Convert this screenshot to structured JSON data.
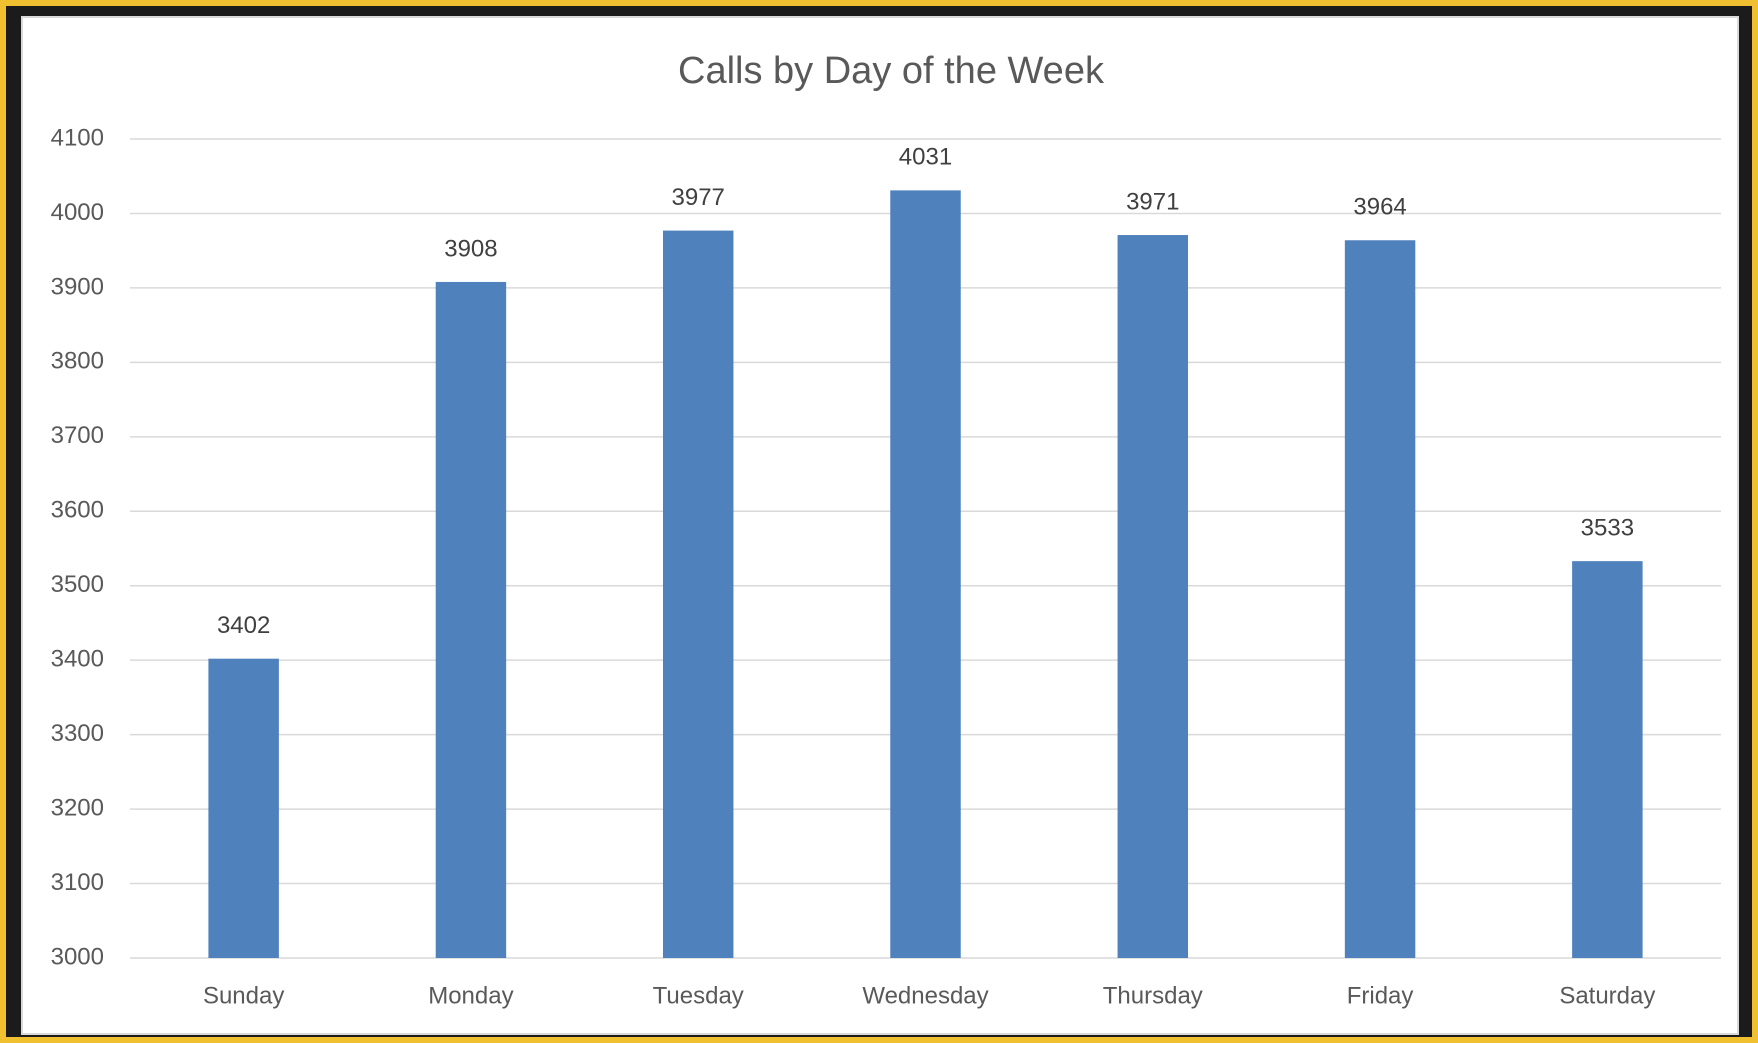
{
  "chart_data": {
    "type": "bar",
    "title": "Calls by Day of the Week",
    "categories": [
      "Sunday",
      "Monday",
      "Tuesday",
      "Wednesday",
      "Thursday",
      "Friday",
      "Saturday"
    ],
    "values": [
      3402,
      3908,
      3977,
      4031,
      3971,
      3964,
      3533
    ],
    "color": "#4f81bd",
    "ylim": [
      3000,
      4100
    ],
    "yticks": [
      3000,
      3100,
      3200,
      3300,
      3400,
      3500,
      3600,
      3700,
      3800,
      3900,
      4000,
      4100
    ],
    "grid": true
  }
}
